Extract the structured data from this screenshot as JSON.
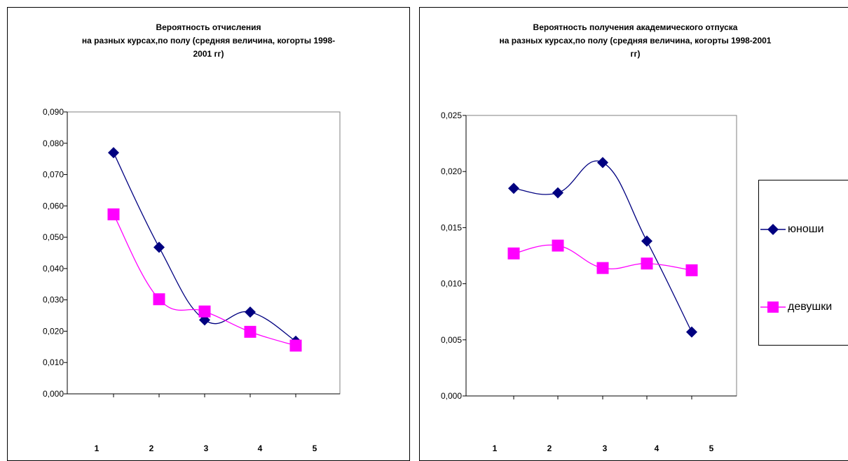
{
  "chart_data": [
    {
      "type": "line",
      "title_lines": [
        "Вероятность отчисления",
        "на разных курсах,по полу (средняя  величина, когорты 1998-",
        "2001 гг)"
      ],
      "categories": [
        "1",
        "2",
        "3",
        "4",
        "5"
      ],
      "ylim": [
        0,
        0.09
      ],
      "yticks": [
        "0,000",
        "0,010",
        "0,020",
        "0,030",
        "0,040",
        "0,050",
        "0,060",
        "0,070",
        "0,080",
        "0,090"
      ],
      "series": [
        {
          "name": "юноши",
          "values": [
            0.077,
            0.0468,
            0.0236,
            0.0261,
            0.0168
          ]
        },
        {
          "name": "девушки",
          "values": [
            0.0573,
            0.0302,
            0.0263,
            0.0198,
            0.0154
          ]
        }
      ]
    },
    {
      "type": "line",
      "title_lines": [
        "Вероятность получения академического отпуска",
        "на разных курсах,по полу (средняя  величина, когорты 1998-2001",
        "гг)"
      ],
      "categories": [
        "1",
        "2",
        "3",
        "4",
        "5"
      ],
      "ylim": [
        0,
        0.025
      ],
      "yticks": [
        "0,000",
        "0,005",
        "0,010",
        "0,015",
        "0,020",
        "0,025"
      ],
      "series": [
        {
          "name": "юноши",
          "values": [
            0.0185,
            0.0181,
            0.0208,
            0.0138,
            0.0057
          ]
        },
        {
          "name": "девушки",
          "values": [
            0.0127,
            0.0134,
            0.0114,
            0.0118,
            0.0112
          ]
        }
      ]
    }
  ],
  "legend": {
    "items": [
      {
        "label": "юноши",
        "color": "#000080",
        "marker": "diamond"
      },
      {
        "label": "девушки",
        "color": "#FF00FF",
        "marker": "square"
      }
    ],
    "placement": "right"
  },
  "colors": {
    "series1": "#000080",
    "series2": "#FF00FF"
  }
}
